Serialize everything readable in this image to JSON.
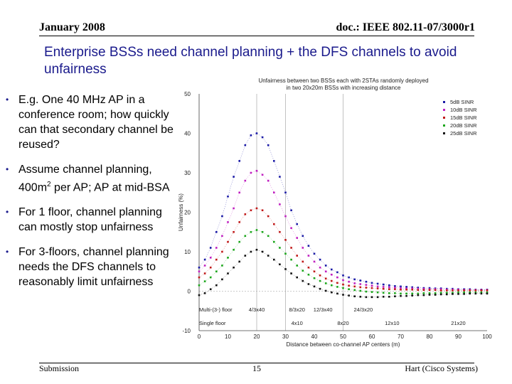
{
  "header": {
    "date": "January 2008",
    "doc_id": "doc.: IEEE 802.11-07/3000r1"
  },
  "slide": {
    "title": "Enterprise BSSs need channel planning + the DFS channels to avoid unfairness",
    "bullets": [
      {
        "text": "E.g. One 40 MHz AP in a conference room; how quickly can that secondary channel be reused?"
      },
      {
        "text_before": "Assume channel planning, 400m",
        "sup": "2",
        "text_after": " per AP; AP at mid-BSA"
      },
      {
        "text": "For 1 floor, channel planning can mostly stop unfairness"
      },
      {
        "text": "For 3-floors, channel planning needs the DFS channels to reasonably limit unfairness"
      }
    ]
  },
  "footer": {
    "left": "Submission",
    "page": "15",
    "right": "Hart (Cisco Systems)"
  },
  "chart_data": {
    "type": "scatter",
    "title": "Unfairness between two BSSs each with 2STAs randomly deployed in two 20x20m BSSs with increasing distance",
    "xlabel": "Distance between co-channel AP centers (m)",
    "ylabel": "Unfairness (%)",
    "xlim": [
      0,
      100
    ],
    "ylim": [
      -10,
      50
    ],
    "x_ticks": [
      "0",
      "10",
      "20",
      "30",
      "40",
      "50",
      "60",
      "70",
      "80",
      "90",
      "100"
    ],
    "y_ticks": [
      "-10",
      "0",
      "10",
      "20",
      "30",
      "40",
      "50"
    ],
    "grid_x": [
      20,
      30,
      50
    ],
    "annotations": {
      "multi_floor": {
        "label": "Multi-(3-) floor",
        "items": [
          "4/3x40",
          "8/3x20",
          "12/3x40",
          "24/3x20"
        ]
      },
      "single_floor": {
        "label": "Single floor",
        "items": [
          "4x10",
          "8x20",
          "12x10",
          "21x20"
        ]
      }
    },
    "x": [
      0,
      2,
      4,
      6,
      8,
      10,
      12,
      14,
      16,
      18,
      20,
      22,
      24,
      26,
      28,
      30,
      32,
      34,
      36,
      38,
      40,
      42,
      44,
      46,
      48,
      50,
      52,
      54,
      56,
      58,
      60,
      62,
      64,
      66,
      68,
      70,
      72,
      74,
      76,
      78,
      80,
      82,
      84,
      86,
      88,
      90,
      92,
      94,
      96,
      98,
      100
    ],
    "series": [
      {
        "name": "5dB SINR",
        "color": "#1a1aa6",
        "values": [
          6,
          8,
          11,
          15,
          19,
          24,
          29,
          33,
          37,
          39.5,
          40,
          39,
          37,
          33,
          29,
          25,
          20.5,
          17,
          14,
          11.5,
          9.5,
          8,
          6.5,
          5.5,
          4.8,
          4,
          3.5,
          3,
          2.7,
          2.4,
          2.1,
          1.9,
          1.7,
          1.5,
          1.3,
          1.2,
          1.1,
          1,
          0.9,
          0.8,
          0.8,
          0.7,
          0.7,
          0.6,
          0.6,
          0.5,
          0.5,
          0.5,
          0.4,
          0.4,
          0.4
        ]
      },
      {
        "name": "10dB SINR",
        "color": "#c020c0",
        "values": [
          5,
          6.5,
          8.5,
          11,
          14,
          17.5,
          21,
          25,
          28,
          30,
          30.5,
          29.5,
          28,
          25,
          22,
          19,
          16,
          13.5,
          11,
          9,
          7.5,
          6,
          5,
          4.2,
          3.5,
          2.8,
          2.4,
          2,
          1.8,
          1.6,
          1.4,
          1.2,
          1.1,
          1,
          0.9,
          0.8,
          0.7,
          0.7,
          0.6,
          0.6,
          0.5,
          0.5,
          0.5,
          0.4,
          0.4,
          0.4,
          0.3,
          0.3,
          0.3,
          0.3,
          0.3
        ]
      },
      {
        "name": "15dB SINR",
        "color": "#c01818",
        "values": [
          3.5,
          4.5,
          6,
          8,
          10,
          12.5,
          15,
          17.5,
          19.5,
          20.5,
          21,
          20.5,
          19,
          17,
          15,
          13,
          11,
          9,
          7.5,
          6,
          5,
          4,
          3.2,
          2.6,
          2.1,
          1.7,
          1.4,
          1.2,
          1,
          0.9,
          0.8,
          0.7,
          0.6,
          0.5,
          0.5,
          0.4,
          0.4,
          0.4,
          0.3,
          0.3,
          0.3,
          0.3,
          0.2,
          0.2,
          0.2,
          0.2,
          0.2,
          0.2,
          0.2,
          0.2,
          0.2
        ]
      },
      {
        "name": "20dB SINR",
        "color": "#1aa61a",
        "values": [
          1.5,
          2.5,
          3.5,
          5,
          6.5,
          8.5,
          10.5,
          12.5,
          14,
          15,
          15.5,
          15,
          14,
          12.5,
          11,
          9.5,
          8,
          6.5,
          5.2,
          4.2,
          3.3,
          2.6,
          2,
          1.5,
          1.1,
          0.8,
          0.5,
          0.3,
          0.1,
          -0.1,
          -0.2,
          -0.3,
          -0.4,
          -0.5,
          -0.5,
          -0.6,
          -0.6,
          -0.6,
          -0.6,
          -0.5,
          -0.5,
          -0.5,
          -0.4,
          -0.4,
          -0.4,
          -0.3,
          -0.3,
          -0.3,
          -0.3,
          -0.3,
          -0.3
        ]
      },
      {
        "name": "25dB SINR",
        "color": "#111111",
        "values": [
          -1,
          -0.5,
          0.5,
          1.5,
          3,
          4.5,
          6,
          7.5,
          9,
          10,
          10.5,
          10,
          9,
          8,
          6.8,
          5.6,
          4.5,
          3.5,
          2.6,
          1.8,
          1.2,
          0.6,
          0.1,
          -0.3,
          -0.6,
          -0.9,
          -1.1,
          -1.3,
          -1.4,
          -1.5,
          -1.5,
          -1.5,
          -1.4,
          -1.4,
          -1.3,
          -1.2,
          -1.2,
          -1.1,
          -1,
          -1,
          -0.9,
          -0.9,
          -0.8,
          -0.8,
          -0.7,
          -0.7,
          -0.7,
          -0.6,
          -0.6,
          -0.6,
          -0.6
        ]
      }
    ]
  }
}
